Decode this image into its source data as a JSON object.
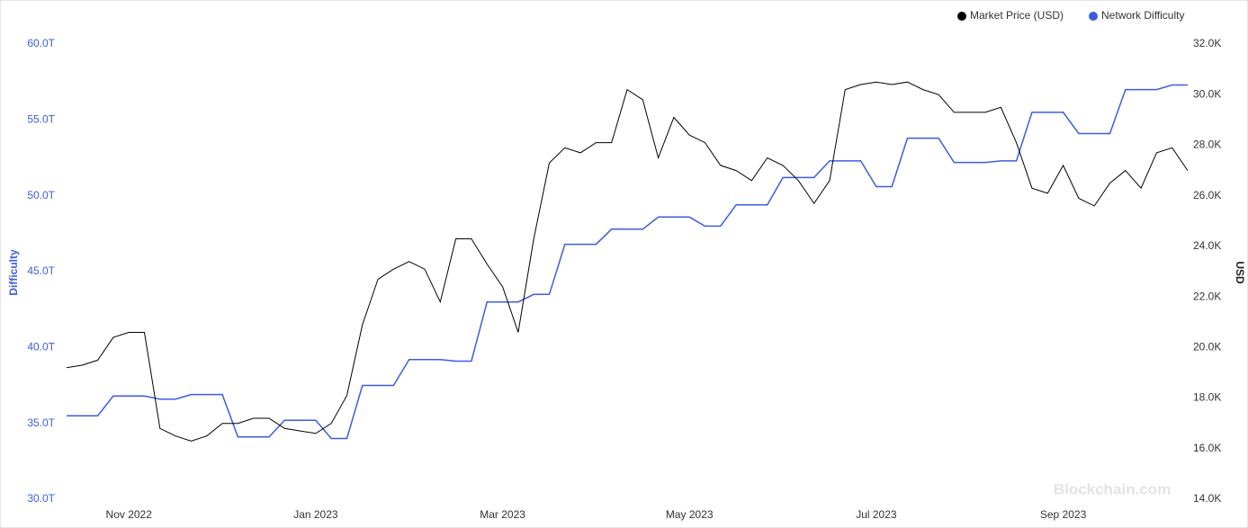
{
  "chart_data": {
    "type": "line",
    "y_label": "Difficulty",
    "y2_label": "USD",
    "watermark": "Blockchain.com",
    "categories": [
      null,
      null,
      null,
      null,
      "Nov 2022",
      null,
      null,
      null,
      null,
      null,
      null,
      null,
      null,
      null,
      null,
      null,
      "Jan 2023",
      null,
      null,
      null,
      null,
      null,
      null,
      null,
      null,
      null,
      null,
      null,
      "Mar 2023",
      null,
      null,
      null,
      null,
      null,
      null,
      null,
      null,
      null,
      null,
      null,
      "May 2023",
      null,
      null,
      null,
      null,
      null,
      null,
      null,
      null,
      null,
      null,
      null,
      "Jul 2023",
      null,
      null,
      null,
      null,
      null,
      null,
      null,
      null,
      null,
      null,
      null,
      "Sep 2023",
      null,
      null,
      null,
      null,
      null,
      null,
      null,
      null
    ],
    "series": [
      {
        "name": "Market Price (USD)",
        "color": "#000000",
        "axis": "y2",
        "values": [
          19.2,
          19.3,
          19.5,
          20.4,
          20.6,
          20.6,
          16.8,
          16.5,
          16.3,
          16.5,
          17.0,
          17.0,
          17.2,
          17.2,
          16.8,
          16.7,
          16.6,
          17.0,
          18.1,
          20.9,
          22.7,
          23.1,
          23.4,
          23.1,
          21.8,
          24.3,
          24.3,
          23.3,
          22.4,
          20.6,
          24.3,
          27.3,
          27.9,
          27.7,
          28.1,
          28.1,
          30.2,
          29.8,
          27.5,
          29.1,
          28.4,
          28.1,
          27.2,
          27.0,
          26.6,
          27.5,
          27.2,
          26.6,
          25.7,
          26.6,
          30.2,
          30.4,
          30.5,
          30.4,
          30.5,
          30.2,
          30.0,
          29.3,
          29.3,
          29.3,
          29.5,
          28.1,
          26.3,
          26.1,
          27.2,
          25.9,
          25.6,
          26.5,
          27.0,
          26.3,
          27.7,
          27.9,
          27.0
        ]
      },
      {
        "name": "Network Difficulty",
        "color": "#3d5ce0",
        "values": [
          35.5,
          35.5,
          35.5,
          36.8,
          36.8,
          36.8,
          36.6,
          36.6,
          36.9,
          36.9,
          36.9,
          34.1,
          34.1,
          34.1,
          35.2,
          35.2,
          35.2,
          34.0,
          34.0,
          37.5,
          37.5,
          37.5,
          39.2,
          39.2,
          39.2,
          39.1,
          39.1,
          43.0,
          43.0,
          43.0,
          43.5,
          43.5,
          46.8,
          46.8,
          46.8,
          47.8,
          47.8,
          47.8,
          48.6,
          48.6,
          48.6,
          48.0,
          48.0,
          49.4,
          49.4,
          49.4,
          51.2,
          51.2,
          51.2,
          52.3,
          52.3,
          52.3,
          50.6,
          50.6,
          53.8,
          53.8,
          53.8,
          52.2,
          52.2,
          52.2,
          52.3,
          52.3,
          55.5,
          55.5,
          55.5,
          54.1,
          54.1,
          54.1,
          57.0,
          57.0,
          57.0,
          57.3,
          57.3
        ]
      }
    ],
    "ylim": [
      30,
      60
    ],
    "yticks": [
      {
        "value": 30,
        "label": "30.0T"
      },
      {
        "value": 35,
        "label": "35.0T"
      },
      {
        "value": 40,
        "label": "40.0T"
      },
      {
        "value": 45,
        "label": "45.0T"
      },
      {
        "value": 50,
        "label": "50.0T"
      },
      {
        "value": 55,
        "label": "55.0T"
      },
      {
        "value": 60,
        "label": "60.0T"
      }
    ],
    "y2lim": [
      14,
      32
    ],
    "y2ticks": [
      {
        "value": 14,
        "label": "14.0K"
      },
      {
        "value": 16,
        "label": "16.0K"
      },
      {
        "value": 18,
        "label": "18.0K"
      },
      {
        "value": 20,
        "label": "20.0K"
      },
      {
        "value": 22,
        "label": "22.0K"
      },
      {
        "value": 24,
        "label": "24.0K"
      },
      {
        "value": 26,
        "label": "26.0K"
      },
      {
        "value": 28,
        "label": "28.0K"
      },
      {
        "value": 30,
        "label": "30.0K"
      },
      {
        "value": 32,
        "label": "32.0K"
      }
    ],
    "y_color": "#3d5ce0",
    "grid": false,
    "legend": "top-right"
  }
}
